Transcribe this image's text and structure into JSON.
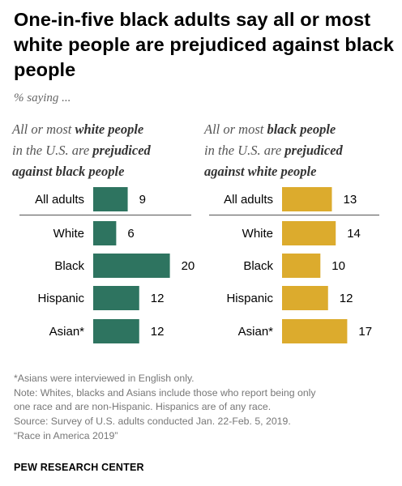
{
  "title": "One-in-five black adults say all or most white people are prejudiced against black people",
  "subtitle": "% saying ...",
  "panels": [
    {
      "heading_parts": [
        {
          "text": "All or most ",
          "bold": false
        },
        {
          "text": "white people",
          "bold": true
        },
        {
          "text": " in the U.S. are ",
          "bold": false
        },
        {
          "text": "prejudiced against black people",
          "bold": true
        }
      ],
      "heading_lines": [
        [
          {
            "text": "All or most ",
            "bold": false
          },
          {
            "text": "white people",
            "bold": true
          }
        ],
        [
          {
            "text": "in the U.S. are ",
            "bold": false
          },
          {
            "text": "prejudiced",
            "bold": true
          }
        ],
        [
          {
            "text": "against black people",
            "bold": true
          }
        ]
      ]
    },
    {
      "heading_lines": [
        [
          {
            "text": "All or most ",
            "bold": false
          },
          {
            "text": "black people",
            "bold": true
          }
        ],
        [
          {
            "text": "in the U.S. are ",
            "bold": false
          },
          {
            "text": "prejudiced",
            "bold": true
          }
        ],
        [
          {
            "text": "against white people",
            "bold": true
          }
        ]
      ]
    }
  ],
  "chart_data": [
    {
      "type": "bar",
      "orientation": "horizontal",
      "categories": [
        "All adults",
        "White",
        "Black",
        "Hispanic",
        "Asian*"
      ],
      "values": [
        9,
        6,
        20,
        12,
        12
      ],
      "color": "#2e7460"
    },
    {
      "type": "bar",
      "orientation": "horizontal",
      "categories": [
        "All adults",
        "White",
        "Black",
        "Hispanic",
        "Asian*"
      ],
      "values": [
        13,
        14,
        10,
        12,
        17
      ],
      "color": "#dcab2d"
    }
  ],
  "notes": [
    "*Asians were interviewed in English only.",
    "Note: Whites, blacks and Asians include those who report being only",
    "one race and are non-Hispanic. Hispanics are of any race.",
    "Source: Survey of U.S. adults conducted Jan. 22-Feb. 5, 2019.",
    "“Race in America 2019”"
  ],
  "brand": "PEW RESEARCH CENTER"
}
